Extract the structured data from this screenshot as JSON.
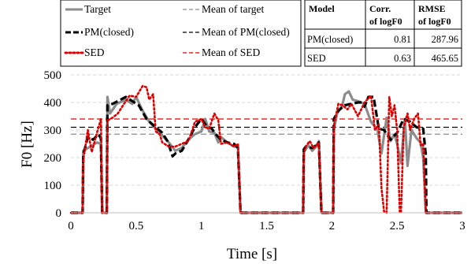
{
  "chart_data": {
    "type": "line",
    "xlabel": "Time [s]",
    "ylabel": "F0 [Hz]",
    "xlim": [
      0,
      3
    ],
    "ylim": [
      0,
      500
    ],
    "xticks": [
      0,
      0.5,
      1,
      1.5,
      2,
      2.5,
      3
    ],
    "xtick_labels": [
      "0",
      "0.5",
      "1",
      "1.5",
      "2",
      "2.5",
      "3"
    ],
    "yticks": [
      0,
      100,
      200,
      300,
      400,
      500
    ],
    "ytick_labels": [
      "0",
      "100",
      "200",
      "300",
      "400",
      "500"
    ],
    "grid": "horizontal dashed",
    "legend_placement": "top-left, outside plot",
    "series": [
      {
        "name": "Target",
        "color": "#8c8c8c",
        "style": "solid",
        "points": [
          [
            0,
            0
          ],
          [
            0.09,
            0
          ],
          [
            0.095,
            225
          ],
          [
            0.15,
            240
          ],
          [
            0.2,
            255
          ],
          [
            0.23,
            250
          ],
          [
            0.24,
            0
          ],
          [
            0.275,
            0
          ],
          [
            0.28,
            420
          ],
          [
            0.3,
            360
          ],
          [
            0.35,
            395
          ],
          [
            0.42,
            410
          ],
          [
            0.47,
            395
          ],
          [
            0.5,
            420
          ],
          [
            0.55,
            370
          ],
          [
            0.6,
            330
          ],
          [
            0.65,
            305
          ],
          [
            0.7,
            280
          ],
          [
            0.75,
            255
          ],
          [
            0.8,
            225
          ],
          [
            0.85,
            235
          ],
          [
            0.9,
            265
          ],
          [
            0.95,
            285
          ],
          [
            1.0,
            295
          ],
          [
            1.03,
            340
          ],
          [
            1.06,
            295
          ],
          [
            1.1,
            290
          ],
          [
            1.13,
            255
          ],
          [
            1.15,
            275
          ],
          [
            1.2,
            255
          ],
          [
            1.25,
            240
          ],
          [
            1.28,
            240
          ],
          [
            1.3,
            0
          ],
          [
            1.78,
            0
          ],
          [
            1.785,
            220
          ],
          [
            1.82,
            245
          ],
          [
            1.85,
            225
          ],
          [
            1.88,
            240
          ],
          [
            1.9,
            260
          ],
          [
            1.92,
            0
          ],
          [
            2.01,
            0
          ],
          [
            2.015,
            300
          ],
          [
            2.04,
            360
          ],
          [
            2.08,
            390
          ],
          [
            2.1,
            430
          ],
          [
            2.13,
            440
          ],
          [
            2.16,
            410
          ],
          [
            2.2,
            405
          ],
          [
            2.25,
            395
          ],
          [
            2.3,
            330
          ],
          [
            2.35,
            300
          ],
          [
            2.38,
            215
          ],
          [
            2.42,
            345
          ],
          [
            2.45,
            260
          ],
          [
            2.48,
            285
          ],
          [
            2.5,
            250
          ],
          [
            2.53,
            180
          ],
          [
            2.56,
            340
          ],
          [
            2.58,
            170
          ],
          [
            2.61,
            300
          ],
          [
            2.65,
            270
          ],
          [
            2.68,
            255
          ],
          [
            2.7,
            200
          ],
          [
            2.72,
            0
          ],
          [
            3.0,
            0
          ]
        ]
      },
      {
        "name": "PM(closed)",
        "color": "#000000",
        "style": "dashed",
        "points": [
          [
            0,
            0
          ],
          [
            0.09,
            0
          ],
          [
            0.095,
            210
          ],
          [
            0.13,
            275
          ],
          [
            0.17,
            265
          ],
          [
            0.21,
            285
          ],
          [
            0.23,
            270
          ],
          [
            0.24,
            0
          ],
          [
            0.275,
            0
          ],
          [
            0.28,
            390
          ],
          [
            0.32,
            395
          ],
          [
            0.38,
            410
          ],
          [
            0.42,
            420
          ],
          [
            0.47,
            405
          ],
          [
            0.52,
            390
          ],
          [
            0.58,
            340
          ],
          [
            0.65,
            310
          ],
          [
            0.7,
            290
          ],
          [
            0.74,
            260
          ],
          [
            0.78,
            205
          ],
          [
            0.8,
            215
          ],
          [
            0.85,
            225
          ],
          [
            0.9,
            265
          ],
          [
            0.95,
            310
          ],
          [
            1.0,
            340
          ],
          [
            1.04,
            315
          ],
          [
            1.08,
            305
          ],
          [
            1.11,
            285
          ],
          [
            1.15,
            265
          ],
          [
            1.2,
            255
          ],
          [
            1.25,
            250
          ],
          [
            1.28,
            235
          ],
          [
            1.3,
            0
          ],
          [
            1.78,
            0
          ],
          [
            1.785,
            230
          ],
          [
            1.8,
            240
          ],
          [
            1.85,
            235
          ],
          [
            1.88,
            245
          ],
          [
            1.9,
            255
          ],
          [
            1.92,
            0
          ],
          [
            2.01,
            0
          ],
          [
            2.015,
            340
          ],
          [
            2.05,
            370
          ],
          [
            2.1,
            390
          ],
          [
            2.15,
            395
          ],
          [
            2.2,
            400
          ],
          [
            2.23,
            400
          ],
          [
            2.25,
            385
          ],
          [
            2.28,
            420
          ],
          [
            2.32,
            420
          ],
          [
            2.36,
            305
          ],
          [
            2.4,
            300
          ],
          [
            2.45,
            265
          ],
          [
            2.5,
            290
          ],
          [
            2.55,
            340
          ],
          [
            2.6,
            330
          ],
          [
            2.65,
            310
          ],
          [
            2.7,
            305
          ],
          [
            2.72,
            210
          ],
          [
            2.725,
            0
          ],
          [
            3.0,
            0
          ]
        ]
      },
      {
        "name": "SED",
        "color": "#e00000",
        "style": "dotted",
        "points": [
          [
            0,
            0
          ],
          [
            0.09,
            0
          ],
          [
            0.095,
            190
          ],
          [
            0.13,
            300
          ],
          [
            0.16,
            220
          ],
          [
            0.2,
            290
          ],
          [
            0.23,
            340
          ],
          [
            0.24,
            0
          ],
          [
            0.275,
            0
          ],
          [
            0.28,
            335
          ],
          [
            0.32,
            345
          ],
          [
            0.36,
            360
          ],
          [
            0.4,
            390
          ],
          [
            0.45,
            425
          ],
          [
            0.5,
            420
          ],
          [
            0.55,
            460
          ],
          [
            0.58,
            455
          ],
          [
            0.6,
            410
          ],
          [
            0.63,
            430
          ],
          [
            0.65,
            295
          ],
          [
            0.68,
            285
          ],
          [
            0.7,
            255
          ],
          [
            0.75,
            240
          ],
          [
            0.8,
            240
          ],
          [
            0.85,
            250
          ],
          [
            0.9,
            260
          ],
          [
            0.93,
            300
          ],
          [
            0.95,
            330
          ],
          [
            1.0,
            340
          ],
          [
            1.03,
            310
          ],
          [
            1.06,
            305
          ],
          [
            1.1,
            360
          ],
          [
            1.13,
            335
          ],
          [
            1.15,
            250
          ],
          [
            1.2,
            255
          ],
          [
            1.25,
            240
          ],
          [
            1.28,
            250
          ],
          [
            1.3,
            0
          ],
          [
            1.78,
            0
          ],
          [
            1.785,
            215
          ],
          [
            1.8,
            240
          ],
          [
            1.83,
            260
          ],
          [
            1.86,
            235
          ],
          [
            1.9,
            255
          ],
          [
            1.92,
            0
          ],
          [
            2.01,
            0
          ],
          [
            2.015,
            315
          ],
          [
            2.05,
            395
          ],
          [
            2.08,
            390
          ],
          [
            2.12,
            375
          ],
          [
            2.15,
            395
          ],
          [
            2.2,
            350
          ],
          [
            2.25,
            400
          ],
          [
            2.3,
            425
          ],
          [
            2.33,
            300
          ],
          [
            2.36,
            320
          ],
          [
            2.38,
            90
          ],
          [
            2.4,
            5
          ],
          [
            2.42,
            0
          ],
          [
            2.44,
            420
          ],
          [
            2.46,
            350
          ],
          [
            2.48,
            390
          ],
          [
            2.5,
            300
          ],
          [
            2.52,
            5
          ],
          [
            2.53,
            0
          ],
          [
            2.55,
            310
          ],
          [
            2.58,
            360
          ],
          [
            2.6,
            300
          ],
          [
            2.63,
            340
          ],
          [
            2.66,
            360
          ],
          [
            2.68,
            245
          ],
          [
            2.7,
            250
          ],
          [
            2.72,
            0
          ],
          [
            3.0,
            0
          ]
        ]
      }
    ],
    "reference_lines": [
      {
        "name": "Mean of target",
        "y": 285,
        "color": "#8c8c8c",
        "style": "dashed"
      },
      {
        "name": "Mean of PM(closed)",
        "y": 310,
        "color": "#000000",
        "style": "dashed"
      },
      {
        "name": "Mean of SED",
        "y": 340,
        "color": "#e00000",
        "style": "dashed"
      }
    ],
    "legend": [
      {
        "label": "Target",
        "color": "#8c8c8c",
        "style": "solid"
      },
      {
        "label": "Mean of target",
        "color": "#8c8c8c",
        "style": "meandash"
      },
      {
        "label": "PM(closed)",
        "color": "#000000",
        "style": "dashed"
      },
      {
        "label": "Mean of PM(closed)",
        "color": "#000000",
        "style": "meandash"
      },
      {
        "label": "SED",
        "color": "#e00000",
        "style": "dotted"
      },
      {
        "label": "Mean of SED",
        "color": "#e00000",
        "style": "meandash"
      }
    ],
    "table": {
      "headers": [
        [
          "Model",
          ""
        ],
        [
          "Corr.",
          "of logF0"
        ],
        [
          "RMSE",
          "of logF0"
        ]
      ],
      "rows": [
        [
          "PM(closed)",
          "0.81",
          "287.96"
        ],
        [
          "SED",
          "0.63",
          "465.65"
        ]
      ]
    }
  }
}
